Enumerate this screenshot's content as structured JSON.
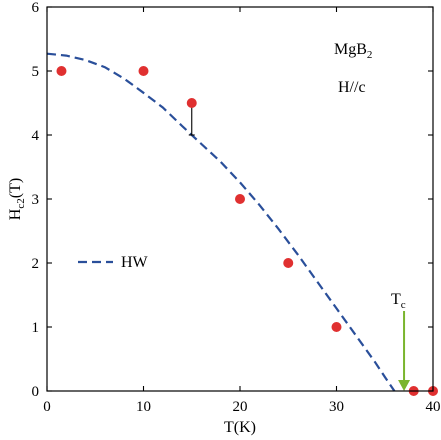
{
  "chart_data": {
    "type": "scatter",
    "xlabel": "T(K)",
    "ylabel": {
      "main": "H",
      "sub": "c2",
      "tail": "(T)"
    },
    "xlim": [
      0,
      40
    ],
    "ylim": [
      0,
      6
    ],
    "xticks": [
      "0",
      "10",
      "20",
      "30",
      "40"
    ],
    "yticks": [
      "0",
      "1",
      "2",
      "3",
      "4",
      "5",
      "6"
    ],
    "grid": false,
    "annotations": {
      "material": {
        "main": "MgB",
        "sub": "2"
      },
      "field": "H//c",
      "tc_label": {
        "main": "T",
        "sub": "c"
      }
    },
    "tc_value": 37,
    "series": [
      {
        "kind": "points",
        "color": "#e03030",
        "x": [
          1.5,
          10,
          15,
          20,
          25,
          30,
          38,
          40
        ],
        "y": [
          5.0,
          5.0,
          4.5,
          3.0,
          2.0,
          1.0,
          0.0,
          0.0
        ]
      },
      {
        "name": "HW",
        "kind": "dashed-line",
        "color": "#2a4f9a",
        "x": [
          0,
          2,
          4,
          6,
          8,
          10,
          12,
          14,
          16,
          18,
          20,
          22,
          24,
          26,
          28,
          30,
          32,
          34,
          35,
          36
        ],
        "y": [
          5.27,
          5.24,
          5.17,
          5.06,
          4.88,
          4.66,
          4.43,
          4.14,
          3.86,
          3.58,
          3.26,
          2.91,
          2.53,
          2.13,
          1.71,
          1.29,
          0.87,
          0.45,
          0.22,
          0.0
        ]
      }
    ],
    "error_bar": {
      "x": 15,
      "y_top": 4.5,
      "y_bottom": 4.0
    },
    "legend": {
      "position": "left-middle",
      "entries": [
        "HW"
      ]
    },
    "colors": {
      "points": "#e03030",
      "fit": "#2a4f9a",
      "tc_arrow": "#7ab52e"
    }
  }
}
